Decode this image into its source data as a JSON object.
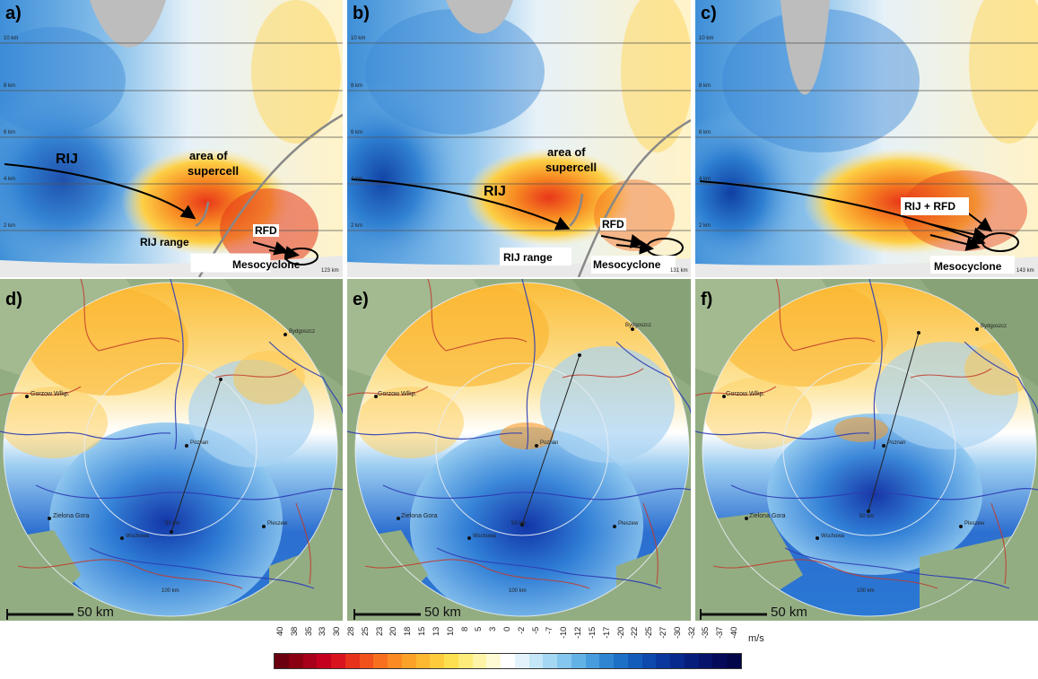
{
  "panels": {
    "a": {
      "label": "a)",
      "alt_labels": [
        "10 km",
        "8 km",
        "6 km",
        "4 km",
        "2 km"
      ],
      "range_label": "123 km",
      "annotations": {
        "rij": "RIJ",
        "area_line1": "area of",
        "area_line2": "supercell",
        "rij_range": "RIJ range",
        "rfd": "RFD",
        "mesocyclone": "Mesocyclone"
      }
    },
    "b": {
      "label": "b)",
      "alt_labels": [
        "10 km",
        "8 km",
        "6 km",
        "4 km",
        "2 km"
      ],
      "range_label": "131 km",
      "annotations": {
        "rij": "RIJ",
        "area_line1": "area of",
        "area_line2": "supercell",
        "rij_range": "RIJ range",
        "rfd": "RFD",
        "mesocyclone": "Mesocyclone"
      }
    },
    "c": {
      "label": "c)",
      "alt_labels": [
        "10 km",
        "8 km",
        "6 km",
        "4 km",
        "2 km"
      ],
      "range_label": "143 km",
      "annotations": {
        "rij_rfd": "RIJ + RFD",
        "mesocyclone": "Mesocyclone"
      }
    },
    "d": {
      "label": "d)",
      "scale": "50 km",
      "cities": {
        "bydgoszcz": "Bydgoszcz",
        "gorzow": "Gorzow Wlkp.",
        "poznan": "Poznan",
        "zielona": "Zielona Gora",
        "wschowa": "Wschowa",
        "pleszew": "Pleszew"
      },
      "range_50": "50 km",
      "range_100": "100 km"
    },
    "e": {
      "label": "e)",
      "scale": "50 km",
      "cities": {
        "bydgoszcz": "Bydgoszcz",
        "gorzow": "Gorzow Wlkp.",
        "poznan": "Poznan",
        "zielona": "Zielona Gora",
        "wschowa": "Wschowa",
        "pleszew": "Pleszew"
      },
      "range_50": "50 km",
      "range_100": "100 km"
    },
    "f": {
      "label": "f)",
      "scale": "50 km",
      "cities": {
        "bydgoszcz": "Bydgoszcz",
        "gorzow": "Gorzow Wlkp.",
        "poznan": "Poznan",
        "zielona": "Zielona Gora",
        "wschowa": "Wschowa",
        "pleszew": "Pleszew"
      },
      "range_50": "50 km",
      "range_100": "100 km"
    }
  },
  "colorbar": {
    "unit": "m/s",
    "ticks": [
      "40",
      "38",
      "35",
      "33",
      "30",
      "28",
      "25",
      "23",
      "20",
      "18",
      "15",
      "13",
      "10",
      "8",
      "5",
      "3",
      "0",
      "-2",
      "-5",
      "-7",
      "-10",
      "-12",
      "-15",
      "-17",
      "-20",
      "-22",
      "-25",
      "-27",
      "-30",
      "-32",
      "-35",
      "-37",
      "-40"
    ],
    "colors": [
      "#6b0010",
      "#8a0012",
      "#a8001a",
      "#c4001e",
      "#d9141e",
      "#e8321c",
      "#f2511c",
      "#f8701e",
      "#fb8a22",
      "#fda229",
      "#fdb832",
      "#fdcb3c",
      "#fde04f",
      "#fdec79",
      "#fdf4a8",
      "#fefad4",
      "#ffffff",
      "#e4f3fb",
      "#c4e6f7",
      "#a4d7f2",
      "#84c6ed",
      "#63b2e6",
      "#469cdd",
      "#2e86d2",
      "#1c70c6",
      "#145cba",
      "#0e49ac",
      "#0a389d",
      "#08298d",
      "#071d7c",
      "#06136b",
      "#050b5a",
      "#04064a"
    ]
  }
}
